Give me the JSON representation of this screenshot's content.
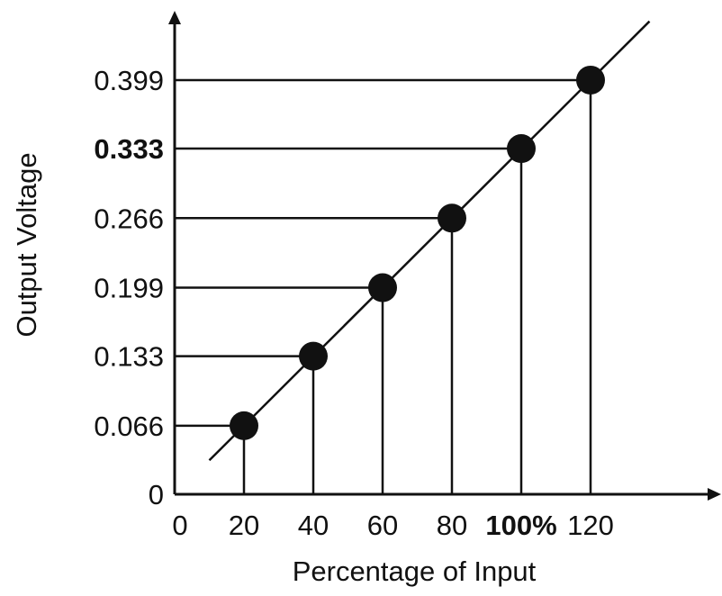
{
  "chart_data": {
    "type": "scatter",
    "title": "",
    "xlabel": "Percentage of Input",
    "ylabel": "Output Voltage",
    "xlim": [
      0,
      120
    ],
    "ylim": [
      0,
      0.399
    ],
    "grid": false,
    "legend": "none",
    "x_ticks": [
      {
        "value": 0,
        "label": "0",
        "bold": false
      },
      {
        "value": 20,
        "label": "20",
        "bold": false
      },
      {
        "value": 40,
        "label": "40",
        "bold": false
      },
      {
        "value": 60,
        "label": "60",
        "bold": false
      },
      {
        "value": 80,
        "label": "80",
        "bold": false
      },
      {
        "value": 100,
        "label": "100%",
        "bold": true
      },
      {
        "value": 120,
        "label": "120",
        "bold": false
      }
    ],
    "y_ticks": [
      {
        "value": 0,
        "label": "0",
        "bold": false
      },
      {
        "value": 0.066,
        "label": "0.066",
        "bold": false
      },
      {
        "value": 0.133,
        "label": "0.133",
        "bold": false
      },
      {
        "value": 0.199,
        "label": "0.199",
        "bold": false
      },
      {
        "value": 0.266,
        "label": "0.266",
        "bold": false
      },
      {
        "value": 0.333,
        "label": "0.333",
        "bold": true
      },
      {
        "value": 0.399,
        "label": "0.399",
        "bold": false
      }
    ],
    "series": [
      {
        "x": [
          20,
          40,
          60,
          80,
          100,
          120
        ],
        "y": [
          0.066,
          0.133,
          0.199,
          0.266,
          0.333,
          0.399
        ],
        "color": "#111111",
        "drop_lines": true,
        "trend_line": true
      }
    ]
  }
}
